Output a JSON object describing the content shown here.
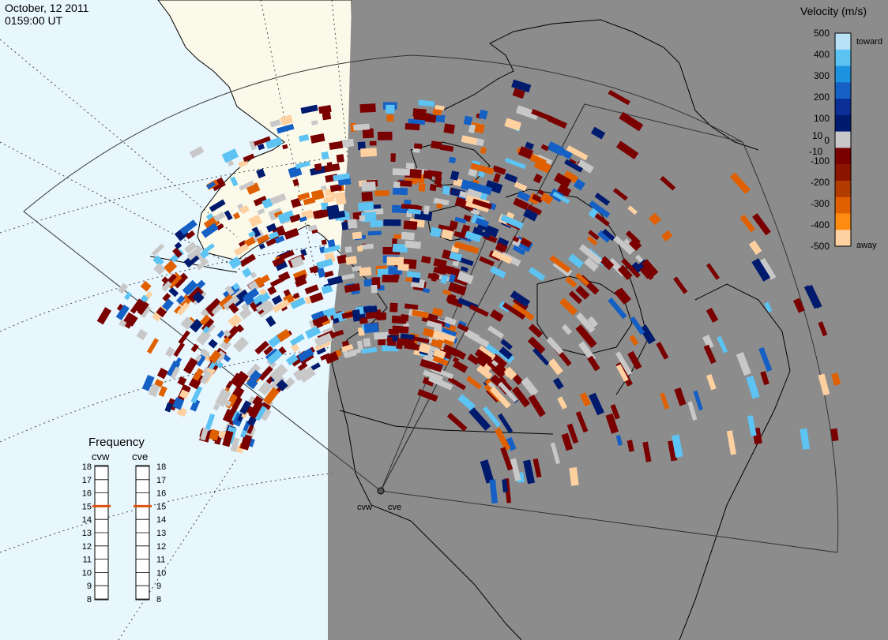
{
  "header": {
    "date": "October, 12 2011",
    "time": "0159:00 UT"
  },
  "colors": {
    "ocean": "#e8f6fd",
    "land": "#fbfaea",
    "night": "#8c8c8c",
    "ground_scatter": "#c8c8c8",
    "coast": "#000000"
  },
  "velocity_scale": {
    "title": "Velocity (m/s)",
    "ticks": [
      "500",
      "400",
      "300",
      "200",
      "100",
      "10",
      "0",
      "-10",
      "-100",
      "-200",
      "-300",
      "-400",
      "-500"
    ],
    "toward_label": "toward",
    "away_label": "away",
    "colors": [
      "#b9e2f7",
      "#5cc3f3",
      "#1d93e0",
      "#1560c4",
      "#0b2f96",
      "#001a6e",
      "#c8c8c8",
      "#7a0000",
      "#8c1500",
      "#b23b00",
      "#e06000",
      "#ff8c10",
      "#ffd0a0"
    ]
  },
  "frequency": {
    "title": "Frequency",
    "left_radar": "cvw",
    "right_radar": "cve",
    "unit_ticks": [
      "18",
      "17",
      "16",
      "15",
      "14",
      "13",
      "12",
      "11",
      "10",
      "9",
      "8"
    ],
    "cvw_value": 15,
    "cve_value": 15,
    "marker_color": "#e05010"
  },
  "radars": [
    {
      "code": "cvw",
      "label": "cvw"
    },
    {
      "code": "cve",
      "label": "cve"
    }
  ]
}
